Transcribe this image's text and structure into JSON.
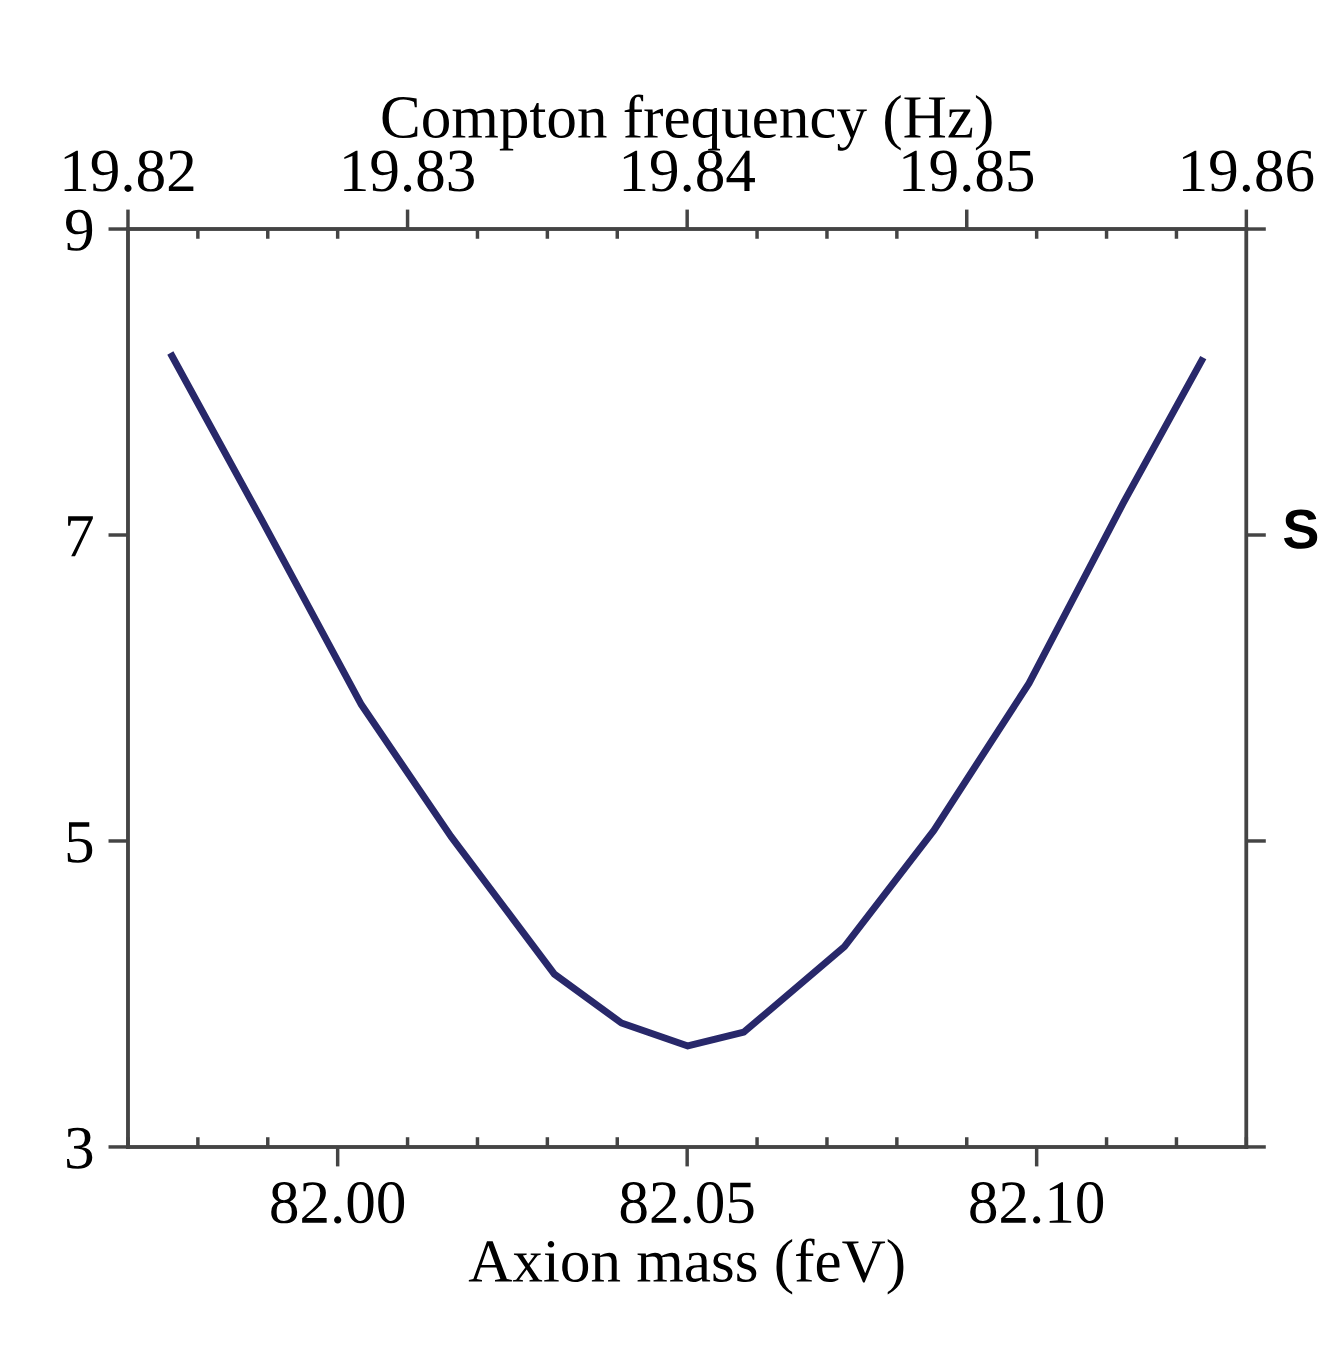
{
  "chart_data": {
    "type": "line",
    "xlabel": "Axion mass (feV)",
    "x2label": "Compton frequency (Hz)",
    "x": [
      81.9763,
      81.989,
      82.0034,
      82.0162,
      82.031,
      82.0406,
      82.0501,
      82.0581,
      82.0725,
      82.0853,
      82.0989,
      82.1124,
      82.1236
    ],
    "series": [
      {
        "color": "#28286a",
        "values": [
          8.17,
          7.11,
          5.89,
          5.03,
          4.13,
          3.81,
          3.66,
          3.75,
          4.31,
          5.07,
          6.03,
          7.21,
          8.14
        ]
      }
    ],
    "xlim": [
      81.97,
      82.13
    ],
    "xticks": [
      {
        "value": 82.0,
        "label": "82.00"
      },
      82.05,
      {
        "value": 82.1,
        "label": "82.10"
      }
    ],
    "x2lim": [
      19.82,
      19.86
    ],
    "x2ticks": [
      19.82,
      19.83,
      19.84,
      19.85,
      19.86
    ],
    "ylim": [
      3,
      9
    ],
    "yticks": [
      3,
      5,
      7,
      9
    ],
    "annotations": [
      "S"
    ],
    "grid": false,
    "legend": false,
    "marker": "none",
    "line_style": "solid"
  }
}
